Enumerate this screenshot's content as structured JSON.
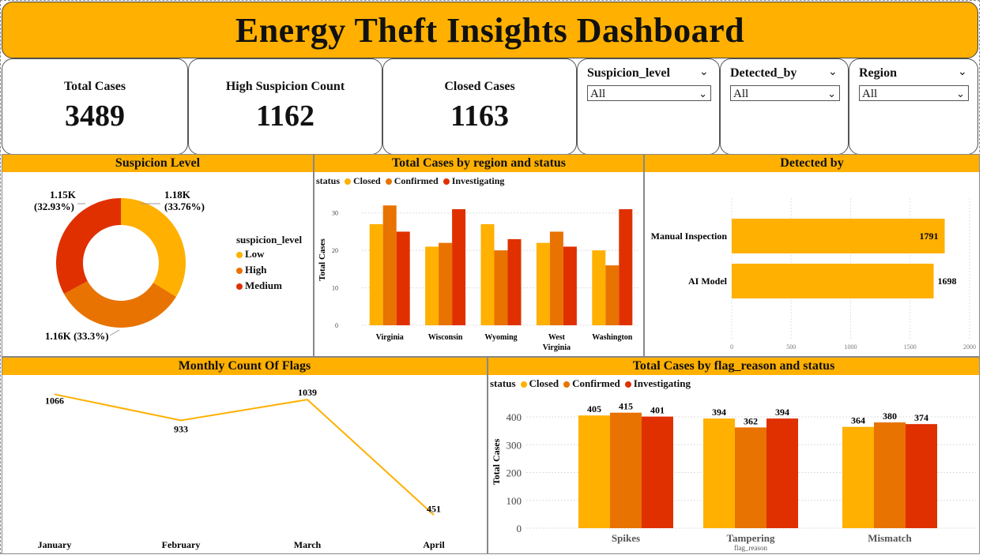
{
  "header": {
    "title": "Energy Theft Insights Dashboard"
  },
  "kpis": [
    {
      "label": "Total Cases",
      "value": "3489"
    },
    {
      "label": "High Suspicion Count",
      "value": "1162"
    },
    {
      "label": "Closed Cases",
      "value": "1163"
    }
  ],
  "slicers": [
    {
      "label": "Suspicion_level",
      "selected": "All"
    },
    {
      "label": "Detected_by",
      "selected": "All"
    },
    {
      "label": "Region",
      "selected": "All"
    }
  ],
  "colors": {
    "accent": "#FFB000",
    "closed": "#FFB000",
    "confirmed": "#E87300",
    "investigating": "#E03000",
    "low": "#FFB000",
    "high": "#E87300",
    "medium": "#E03000"
  },
  "panels": {
    "suspicion": "Suspicion Level",
    "region": "Total Cases by region and status",
    "detected": "Detected by",
    "monthly": "Monthly Count Of Flags",
    "flag": "Total Cases by flag_reason and status"
  },
  "chart_data": [
    {
      "type": "pie",
      "donut": true,
      "title": "Suspicion Level",
      "legend_title": "suspicion_level",
      "legend_position": "right",
      "slices": [
        {
          "name": "Low",
          "value": 1178,
          "label": "1.18K",
          "pct": "(33.76%)"
        },
        {
          "name": "High",
          "value": 1162,
          "label": "1.16K",
          "pct": "(33.3%)"
        },
        {
          "name": "Medium",
          "value": 1149,
          "label": "1.15K",
          "pct": "(32.93%)"
        }
      ]
    },
    {
      "type": "bar",
      "title": "Total Cases by region and status",
      "legend_title": "status",
      "categories": [
        "Virginia",
        "Wisconsin",
        "Wyoming",
        "West Virginia",
        "Washington"
      ],
      "series": [
        {
          "name": "Closed",
          "values": [
            27,
            21,
            27,
            22,
            20
          ]
        },
        {
          "name": "Confirmed",
          "values": [
            32,
            22,
            20,
            25,
            16
          ]
        },
        {
          "name": "Investigating",
          "values": [
            25,
            31,
            23,
            21,
            31
          ]
        }
      ],
      "ylabel": "Total Cases",
      "ylim": [
        0,
        35
      ],
      "yticks": [
        0,
        10,
        20,
        30
      ],
      "grid": true
    },
    {
      "type": "bar",
      "orientation": "horizontal",
      "title": "Detected by",
      "categories": [
        "Manual Inspection",
        "AI Model"
      ],
      "values": [
        1791,
        1698
      ],
      "xlim": [
        0,
        2000
      ],
      "xticks": [
        0,
        500,
        1000,
        1500,
        2000
      ]
    },
    {
      "type": "line",
      "title": "Monthly Count Of Flags",
      "x": [
        "January",
        "February",
        "March",
        "April"
      ],
      "values": [
        1066,
        933,
        1039,
        451
      ]
    },
    {
      "type": "bar",
      "title": "Total Cases by flag_reason and status",
      "legend_title": "status",
      "categories": [
        "Spikes",
        "Tampering",
        "Mismatch"
      ],
      "series": [
        {
          "name": "Closed",
          "values": [
            405,
            394,
            364
          ]
        },
        {
          "name": "Confirmed",
          "values": [
            415,
            362,
            380
          ]
        },
        {
          "name": "Investigating",
          "values": [
            401,
            394,
            374
          ]
        }
      ],
      "xlabel": "flag_reason",
      "ylabel": "Total Cases",
      "ylim": [
        0,
        450
      ],
      "yticks": [
        0,
        100,
        200,
        300,
        400
      ],
      "grid": true
    }
  ]
}
